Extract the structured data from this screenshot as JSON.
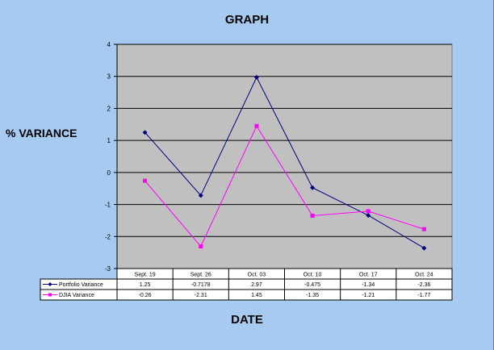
{
  "chart_data": {
    "type": "line",
    "title": "GRAPH",
    "xlabel": "DATE",
    "ylabel": "% VARIANCE",
    "categories": [
      "Sept. 19",
      "Sept. 26",
      "Oct. 03",
      "Oct. 10",
      "Oct. 17",
      "Oct. 24"
    ],
    "ylim": [
      -3,
      4
    ],
    "yticks": [
      "4",
      "3",
      "2",
      "1",
      "0",
      "-1",
      "-2",
      "-3"
    ],
    "grid": true,
    "legend": "data-table-left",
    "series": [
      {
        "name": "Portfolio Variance",
        "values": [
          1.25,
          -0.7178,
          2.97,
          -0.475,
          -1.34,
          -2.36
        ],
        "table_values": [
          "1.25",
          "-0.7178",
          "2.97",
          "-0.475",
          "-1.34",
          "-2.36"
        ],
        "color": "#000080",
        "marker": "diamond"
      },
      {
        "name": "DJIA Variance",
        "values": [
          -0.26,
          -2.31,
          1.45,
          -1.35,
          -1.21,
          -1.77
        ],
        "table_values": [
          "-0.26",
          "-2.31",
          "1.45",
          "-1.35",
          "-1.21",
          "-1.77"
        ],
        "color": "#ff00ff",
        "marker": "square"
      }
    ],
    "plot_background": "#c0c0c0"
  }
}
